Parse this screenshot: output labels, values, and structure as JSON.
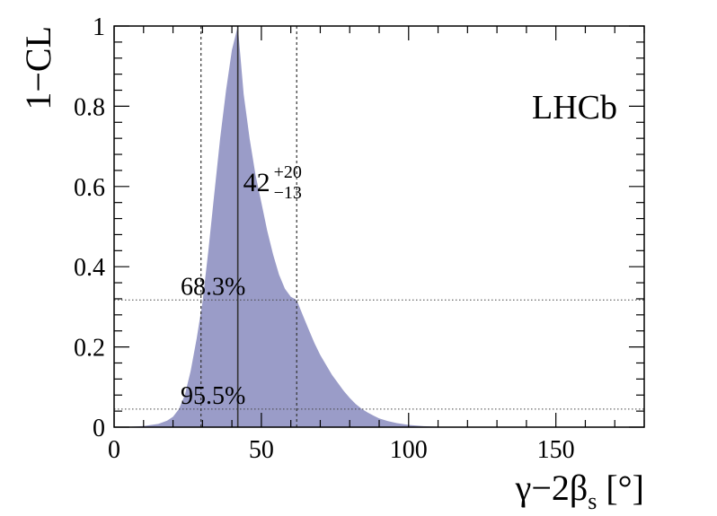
{
  "chart_data": {
    "type": "area",
    "title": "",
    "xlabel": "γ−2β",
    "xlabel_sub": "s",
    "xlabel_unit": " [°]",
    "ylabel": "1−CL",
    "xlim": [
      0,
      180
    ],
    "ylim": [
      0,
      1
    ],
    "x_ticks": [
      0,
      50,
      100,
      150
    ],
    "y_ticks": [
      0,
      0.2,
      0.4,
      0.6,
      0.8,
      1
    ],
    "y_tick_labels": [
      "0",
      "0.2",
      "0.4",
      "0.6",
      "0.8",
      "1"
    ],
    "grid": false,
    "fill_color": "#9a9cc8",
    "experiment_label": "LHCb",
    "best_fit": {
      "x": 42,
      "central_label": "42",
      "upper_label": "+20",
      "lower_label": "−13"
    },
    "interval_bounds_x": [
      29.5,
      62
    ],
    "cl_levels": [
      {
        "label": "68.3%",
        "y": 0.317
      },
      {
        "label": "95.5%",
        "y": 0.045
      }
    ],
    "curve": {
      "x": [
        0,
        5,
        10,
        15,
        18,
        20,
        22,
        24,
        26,
        28,
        30,
        32,
        34,
        36,
        38,
        40,
        42,
        44,
        46,
        48,
        50,
        52,
        54,
        56,
        58,
        60,
        62,
        64,
        66,
        68,
        70,
        72,
        74,
        76,
        78,
        80,
        82,
        84,
        86,
        88,
        90,
        93,
        96,
        100,
        105,
        110,
        115,
        120,
        125,
        180
      ],
      "y": [
        0,
        0.001,
        0.003,
        0.008,
        0.016,
        0.026,
        0.045,
        0.08,
        0.14,
        0.22,
        0.31,
        0.44,
        0.58,
        0.72,
        0.84,
        0.94,
        1.0,
        0.83,
        0.72,
        0.63,
        0.56,
        0.49,
        0.43,
        0.38,
        0.345,
        0.325,
        0.317,
        0.28,
        0.245,
        0.21,
        0.18,
        0.155,
        0.13,
        0.11,
        0.09,
        0.073,
        0.058,
        0.046,
        0.037,
        0.029,
        0.022,
        0.015,
        0.01,
        0.0055,
        0.0025,
        0.0012,
        0.0005,
        0.0002,
        0,
        0
      ]
    }
  }
}
